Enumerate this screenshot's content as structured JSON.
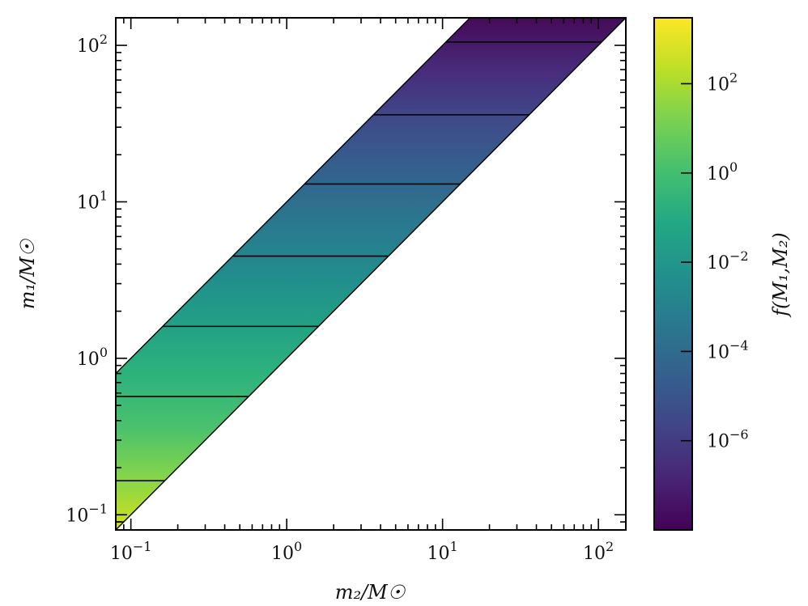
{
  "chart_data": {
    "type": "heatmap",
    "xlabel": "m₂/M☉",
    "ylabel": "m₁/M☉",
    "colorbar_label": "f(M₁,M₂)",
    "xscale": "log",
    "yscale": "log",
    "xlim": [
      0.08,
      150
    ],
    "ylim": [
      0.08,
      150
    ],
    "x_ticks": [
      {
        "value": 0.1,
        "mantissa": "10",
        "exp": "−1"
      },
      {
        "value": 1,
        "mantissa": "10",
        "exp": "0"
      },
      {
        "value": 10,
        "mantissa": "10",
        "exp": "1"
      },
      {
        "value": 100,
        "mantissa": "10",
        "exp": "2"
      }
    ],
    "y_ticks": [
      {
        "value": 0.1,
        "mantissa": "10",
        "exp": "−1"
      },
      {
        "value": 1,
        "mantissa": "10",
        "exp": "0"
      },
      {
        "value": 10,
        "mantissa": "10",
        "exp": "1"
      },
      {
        "value": 100,
        "mantissa": "10",
        "exp": "2"
      }
    ],
    "region": {
      "description_ratio_max": 10,
      "m1_ge_m2": true
    },
    "colorbar": {
      "colormap": "viridis",
      "scale": "log",
      "range": [
        1e-08,
        3000
      ],
      "ticks": [
        {
          "value": 1e-06,
          "mantissa": "10",
          "exp": "−6"
        },
        {
          "value": 0.0001,
          "mantissa": "10",
          "exp": "−4"
        },
        {
          "value": 0.01,
          "mantissa": "10",
          "exp": "−2"
        },
        {
          "value": 1,
          "mantissa": "10",
          "exp": "0"
        },
        {
          "value": 100,
          "mantissa": "10",
          "exp": "2"
        }
      ]
    },
    "contour_m1_levels": [
      0.09,
      0.165,
      0.57,
      1.6,
      4.5,
      13,
      36,
      105
    ],
    "grid": false
  }
}
